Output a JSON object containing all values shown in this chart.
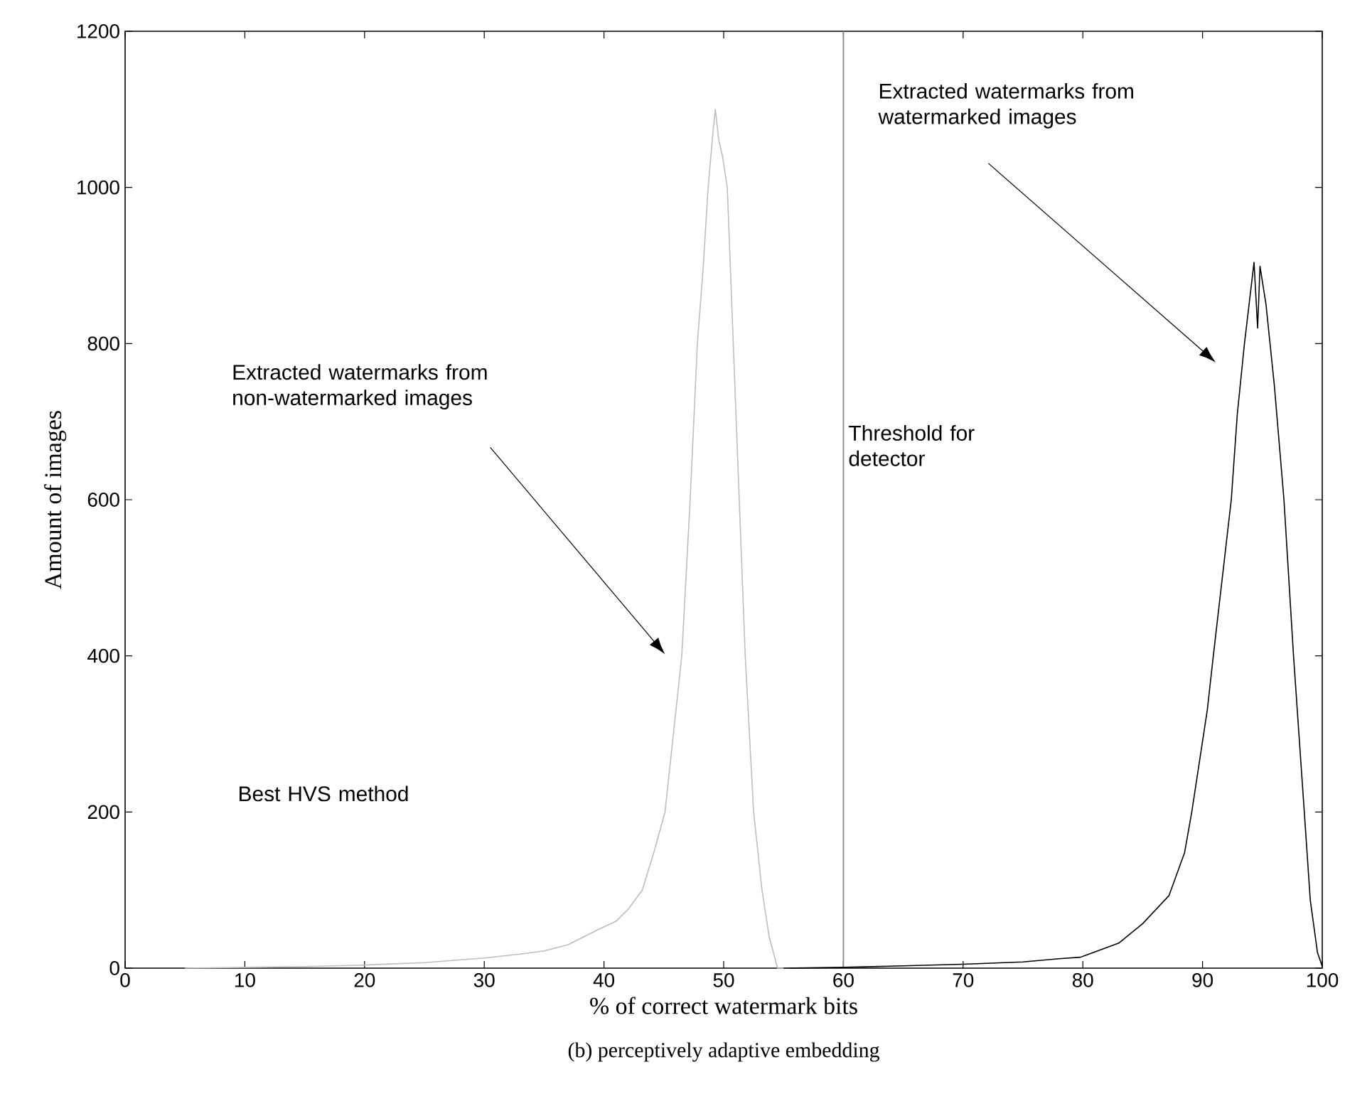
{
  "chart_data": {
    "type": "line",
    "xlabel": "% of correct watermark bits",
    "ylabel": "Amount of images",
    "xlim": [
      0,
      100
    ],
    "ylim": [
      0,
      1200
    ],
    "xticks": [
      0,
      10,
      20,
      30,
      40,
      50,
      60,
      70,
      80,
      90,
      100
    ],
    "yticks": [
      0,
      200,
      400,
      600,
      800,
      1000,
      1200
    ],
    "grid": false,
    "series": [
      {
        "color": "#bdbdbd",
        "x": [
          5,
          10,
          15,
          20,
          25,
          30,
          33,
          35,
          37,
          39.6,
          41,
          42,
          43.2,
          44.2,
          45.1,
          45.8,
          46.5,
          47.2,
          47.8,
          48.3,
          48.7,
          49.1,
          49.3,
          49.6,
          49.9,
          50.3,
          50.8,
          51.3,
          51.8,
          52.5,
          53.2,
          53.8,
          54.5,
          55.5
        ],
        "values": [
          0,
          1,
          2,
          4,
          7,
          13,
          18,
          22,
          30,
          50,
          60,
          75,
          100,
          150,
          200,
          300,
          400,
          600,
          800,
          900,
          1000,
          1070,
          1100,
          1060,
          1040,
          1000,
          800,
          600,
          400,
          200,
          100,
          40,
          0,
          0
        ]
      },
      {
        "color": "#000000",
        "x": [
          55,
          60,
          65,
          70,
          75,
          78,
          79.8,
          83,
          85,
          87.2,
          88.5,
          89.1,
          90.4,
          90.9,
          92.4,
          92.9,
          93.5,
          94.3,
          94.6,
          94.8,
          95.3,
          96,
          96.8,
          97.6,
          98.5,
          99,
          99.6,
          100
        ],
        "values": [
          0,
          1,
          3,
          5,
          8,
          12,
          14,
          32,
          57,
          93,
          148,
          200,
          331,
          400,
          600,
          709,
          800,
          904,
          820,
          899,
          850,
          746,
          600,
          400,
          200,
          87,
          20,
          2
        ]
      }
    ],
    "ref_lines": [
      {
        "axis": "x",
        "value": 60,
        "label": "Threshold for detector",
        "color": "#888888"
      }
    ],
    "annotations": [
      "Extracted watermarks from non-watermarked images",
      "Extracted watermarks from watermarked images",
      "Best HVS method",
      "(b) perceptively adaptive embedding"
    ]
  }
}
